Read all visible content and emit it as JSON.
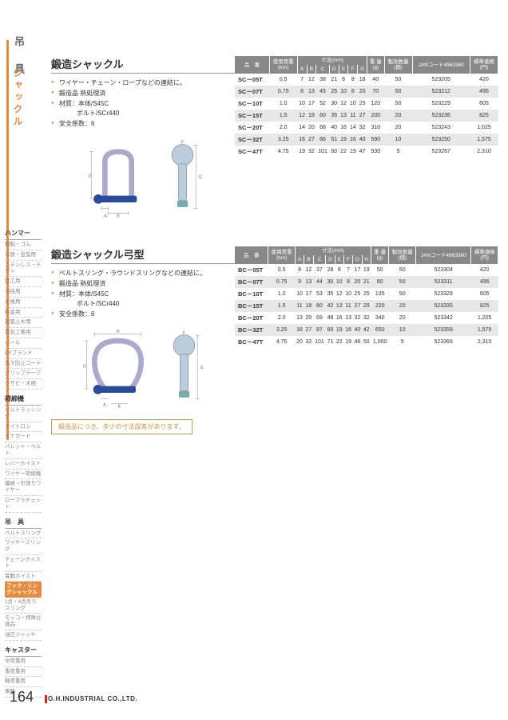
{
  "header": {
    "category": "吊　具",
    "subcategory": "シャックル"
  },
  "sidebar": {
    "sections": [
      {
        "title": "ハンマー",
        "items": [
          "樹脂・ゴム",
          "非鉄・金型用",
          "ステンレス・チタン",
          "鉄工用",
          "溶接用",
          "点検用",
          "板金用",
          "建築土木用",
          "電気工事用",
          "バール",
          "PXブランド",
          "落下防止コード",
          "グリップテープ",
          "クサビ・木柄"
        ]
      },
      {
        "title": "荷締機",
        "items": [
          "ベルトラッシング",
          "タイトロン",
          "タナガード",
          "パレット・ベルト",
          "レバーホイスト",
          "ワイヤー荷締機",
          "繊維・引張りワイヤー",
          "ロープラチェット"
        ]
      },
      {
        "title": "吊　具",
        "items": [
          "ベルトスリング",
          "ワイヤースリング",
          "チェーンホイスト",
          "電動ホイスト",
          {
            "label": "フック・リングシャックル",
            "active": true
          },
          "2点・4点吊りスリング",
          "モッコ・特殊仕様品",
          "油圧ジャッキ"
        ]
      },
      {
        "title": "キャスター",
        "items": [
          "中荷重用",
          "重荷重用",
          "軽荷重用",
          "車輪"
        ]
      }
    ]
  },
  "products": [
    {
      "title": "鍛造シャックル",
      "bullets": [
        "ワイヤー・チェーン・ロープなどの連結に。",
        "鍛造品 熱処理済",
        "材質：本体/S45C",
        "ボルト/SCr440",
        "安全係数：6"
      ],
      "table": {
        "headers": [
          "品　番",
          "使用荷重(ton)",
          "A",
          "B",
          "C",
          "D",
          "E",
          "F",
          "G",
          "重 量(g)",
          "製改数量(個)",
          "JANコード4963360",
          "標準価格(円)"
        ],
        "dim_span": 7,
        "rows": [
          [
            "SC－05T",
            "0.5",
            "7",
            "12",
            "38",
            "21",
            "8",
            "8",
            "18",
            "40",
            "50",
            "523205",
            "420"
          ],
          [
            "SC－07T",
            "0.75",
            "8",
            "13",
            "45",
            "25",
            "10",
            "8",
            "20",
            "70",
            "50",
            "523212",
            "495"
          ],
          [
            "SC－10T",
            "1.0",
            "10",
            "17",
            "52",
            "30",
            "12",
            "10",
            "25",
            "120",
            "50",
            "523229",
            "605"
          ],
          [
            "SC－15T",
            "1.5",
            "12",
            "19",
            "60",
            "35",
            "13",
            "11",
            "27",
            "200",
            "20",
            "523236",
            "825"
          ],
          [
            "SC－20T",
            "2.0",
            "14",
            "20",
            "68",
            "40",
            "16",
            "14",
            "32",
            "310",
            "20",
            "523243",
            "1,025"
          ],
          [
            "SC－32T",
            "3.25",
            "16",
            "27",
            "86",
            "51",
            "19",
            "16",
            "40",
            "590",
            "10",
            "523250",
            "1,575"
          ],
          [
            "SC－47T",
            "4.75",
            "19",
            "32",
            "101",
            "60",
            "22",
            "19",
            "47",
            "930",
            "5",
            "523267",
            "2,310"
          ]
        ]
      }
    },
    {
      "title": "鍛造シャックル弓型",
      "bullets": [
        "ベルトスリング・ラウンドスリングなどの連結に。",
        "鍛造品 熱処理済",
        "材質：本体/S45C",
        "ボルト/SCr440",
        "安全係数：6"
      ],
      "table": {
        "headers": [
          "品　番",
          "使用荷重(ton)",
          "A",
          "B",
          "C",
          "D",
          "E",
          "F",
          "G",
          "H",
          "重 量(g)",
          "製改数量(個)",
          "JANコード4963360",
          "標準価格(円)"
        ],
        "dim_span": 8,
        "rows": [
          [
            "BC－05T",
            "0.5",
            "8",
            "12",
            "37",
            "28",
            "8",
            "7",
            "17",
            "19",
            "50",
            "50",
            "523304",
            "420"
          ],
          [
            "BC－07T",
            "0.75",
            "9",
            "13",
            "44",
            "30",
            "10",
            "8",
            "20",
            "21",
            "80",
            "50",
            "523311",
            "495"
          ],
          [
            "BC－10T",
            "1.0",
            "10",
            "17",
            "53",
            "35",
            "12",
            "10",
            "25",
            "25",
            "135",
            "50",
            "523328",
            "605"
          ],
          [
            "BC－15T",
            "1.5",
            "11",
            "18",
            "60",
            "42",
            "13",
            "11",
            "27",
            "29",
            "220",
            "20",
            "523335",
            "825"
          ],
          [
            "BC－20T",
            "2.0",
            "13",
            "20",
            "69",
            "48",
            "16",
            "13",
            "32",
            "32",
            "340",
            "20",
            "523342",
            "1,205"
          ],
          [
            "BC－32T",
            "3.25",
            "16",
            "27",
            "87",
            "60",
            "19",
            "16",
            "40",
            "42",
            "650",
            "10",
            "523359",
            "1,575"
          ],
          [
            "BC－47T",
            "4.75",
            "20",
            "32",
            "101",
            "71",
            "22",
            "19",
            "48",
            "50",
            "1,000",
            "5",
            "523366",
            "2,310"
          ]
        ]
      },
      "note": "鍛造品につき、多少の寸法誤差があります。"
    }
  ],
  "footer": {
    "page": "164",
    "company": "O.H.INDUSTRIAL CO.,LTD."
  },
  "dim_header": "寸法(mm)"
}
